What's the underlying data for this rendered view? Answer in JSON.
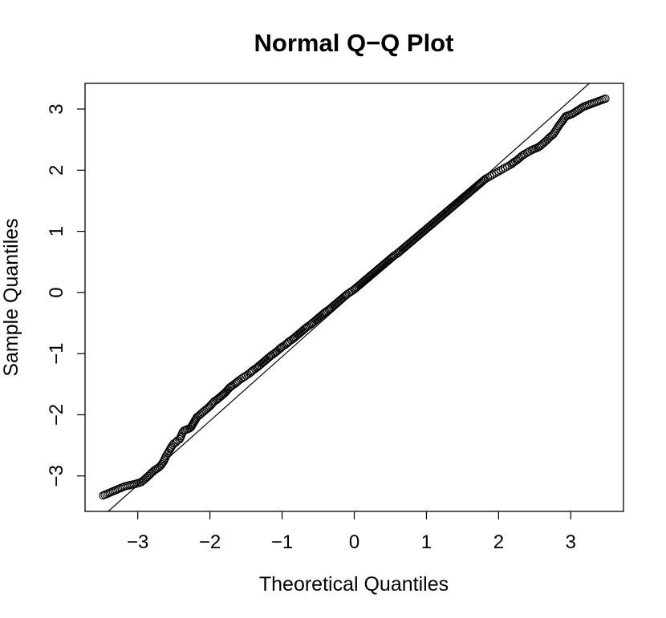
{
  "chart_data": {
    "type": "scatter",
    "title": "Normal Q−Q Plot",
    "xlabel": "Theoretical Quantiles",
    "ylabel": "Sample Quantiles",
    "xlim": [
      -3.73,
      3.73
    ],
    "ylim": [
      -3.58,
      3.42
    ],
    "xticks": [
      -3,
      -2,
      -1,
      0,
      1,
      2,
      3
    ],
    "xtick_labels": [
      "−3",
      "−2",
      "−1",
      "0",
      "1",
      "2",
      "3"
    ],
    "yticks": [
      -3,
      -2,
      -1,
      0,
      1,
      2,
      3
    ],
    "ytick_labels": [
      "−3",
      "−2",
      "−1",
      "0",
      "1",
      "2",
      "3"
    ],
    "grid": false,
    "legend": "none",
    "marker": "open-circle",
    "reference_line": {
      "slope": 1.05,
      "intercept": 0.0
    },
    "n_points": 2000,
    "series": [
      {
        "x": [
          -3.48,
          -3.18,
          -3.03,
          -2.95,
          -2.87,
          -2.8,
          -2.76,
          -2.72,
          -2.68,
          -2.64,
          -2.61,
          -2.58,
          -2.55,
          -2.53,
          -2.5,
          -2.47,
          -2.45,
          -2.42,
          -2.4,
          -2.38,
          -2.36,
          -2.34,
          -2.32,
          -2.3,
          -2.28,
          -2.26,
          -2.24,
          -2.22,
          -2.2,
          -2.18,
          -2.16,
          -2.14,
          -2.12,
          -2.1,
          -2.08,
          -2.06,
          -2.04,
          -2.02,
          -2.0,
          -1.97,
          -1.94,
          -1.91,
          -1.88,
          -1.85,
          -1.82,
          -1.79,
          -1.76,
          -1.73,
          -1.7,
          -1.65,
          -1.6,
          -1.55,
          -1.5,
          -1.45,
          -1.4,
          -1.35,
          -1.3,
          -1.25,
          -1.2,
          -1.15,
          -1.1,
          -1.05,
          -1.0,
          -0.95,
          -0.9,
          -0.85,
          -0.8,
          -0.75,
          -0.7,
          -0.65,
          -0.6,
          -0.55,
          -0.5,
          -0.45,
          -0.4,
          -0.35,
          -0.3,
          -0.25,
          -0.2,
          -0.15,
          -0.1,
          -0.05,
          0.0,
          0.05,
          0.1,
          0.15,
          0.2,
          0.25,
          0.3,
          0.35,
          0.4,
          0.45,
          0.5,
          0.55,
          0.6,
          0.65,
          0.7,
          0.75,
          0.8,
          0.85,
          0.9,
          0.95,
          1.0,
          1.05,
          1.1,
          1.15,
          1.2,
          1.25,
          1.3,
          1.35,
          1.4,
          1.45,
          1.5,
          1.55,
          1.6,
          1.65,
          1.7,
          1.73,
          1.76,
          1.79,
          1.82,
          1.85,
          1.88,
          1.91,
          1.94,
          1.97,
          2.0,
          2.03,
          2.06,
          2.09,
          2.12,
          2.15,
          2.18,
          2.21,
          2.25,
          2.29,
          2.33,
          2.37,
          2.4,
          2.43,
          2.46,
          2.5,
          2.54,
          2.58,
          2.62,
          2.66,
          2.7,
          2.76,
          2.83,
          2.93,
          3.02,
          3.18,
          3.48
        ],
        "y": [
          -3.32,
          -3.17,
          -3.13,
          -3.1,
          -3.02,
          -2.94,
          -2.9,
          -2.87,
          -2.83,
          -2.76,
          -2.68,
          -2.62,
          -2.56,
          -2.52,
          -2.47,
          -2.45,
          -2.42,
          -2.4,
          -2.35,
          -2.29,
          -2.26,
          -2.25,
          -2.24,
          -2.23,
          -2.22,
          -2.2,
          -2.16,
          -2.12,
          -2.08,
          -2.04,
          -2.02,
          -2.0,
          -1.98,
          -1.96,
          -1.94,
          -1.92,
          -1.9,
          -1.88,
          -1.86,
          -1.82,
          -1.78,
          -1.76,
          -1.73,
          -1.7,
          -1.67,
          -1.64,
          -1.6,
          -1.56,
          -1.53,
          -1.49,
          -1.44,
          -1.4,
          -1.36,
          -1.32,
          -1.27,
          -1.23,
          -1.18,
          -1.13,
          -1.08,
          -1.03,
          -0.99,
          -0.94,
          -0.89,
          -0.85,
          -0.8,
          -0.76,
          -0.71,
          -0.66,
          -0.61,
          -0.56,
          -0.52,
          -0.47,
          -0.42,
          -0.37,
          -0.32,
          -0.28,
          -0.23,
          -0.18,
          -0.13,
          -0.08,
          -0.03,
          0.01,
          0.05,
          0.1,
          0.15,
          0.2,
          0.25,
          0.3,
          0.35,
          0.4,
          0.45,
          0.5,
          0.55,
          0.6,
          0.64,
          0.69,
          0.74,
          0.79,
          0.84,
          0.89,
          0.94,
          0.99,
          1.04,
          1.09,
          1.14,
          1.19,
          1.24,
          1.29,
          1.34,
          1.39,
          1.44,
          1.49,
          1.54,
          1.59,
          1.64,
          1.69,
          1.74,
          1.77,
          1.8,
          1.83,
          1.86,
          1.88,
          1.9,
          1.92,
          1.94,
          1.96,
          1.98,
          2.0,
          2.02,
          2.04,
          2.06,
          2.08,
          2.1,
          2.13,
          2.16,
          2.2,
          2.24,
          2.27,
          2.29,
          2.31,
          2.33,
          2.35,
          2.37,
          2.4,
          2.44,
          2.48,
          2.53,
          2.59,
          2.72,
          2.88,
          2.92,
          3.04,
          3.17
        ]
      }
    ]
  }
}
